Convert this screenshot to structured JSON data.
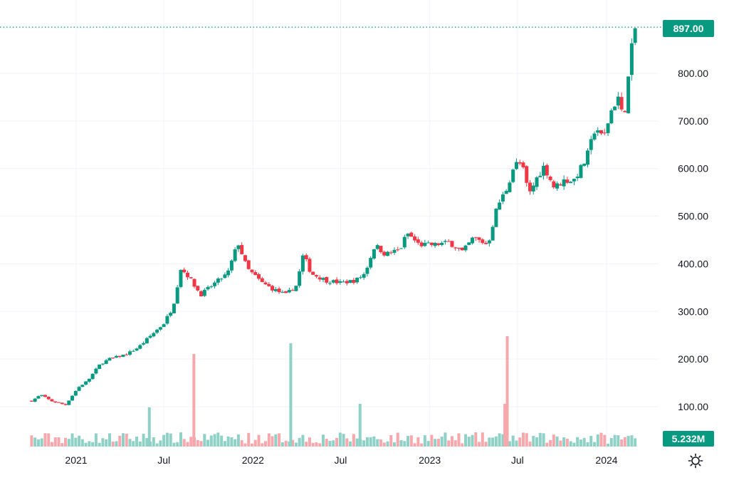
{
  "colors": {
    "up": "#089981",
    "down": "#f23645",
    "up_volume": "#8fd1c6",
    "down_volume": "#f7a8ad",
    "grid": "#f0f3fa",
    "text": "#131722"
  },
  "settings_icon": "gear-icon",
  "chart_data": {
    "type": "candlestick",
    "price_axis": {
      "ylim": [
        0,
        920
      ],
      "ticks": [
        "100.00",
        "200.00",
        "300.00",
        "400.00",
        "500.00",
        "600.00",
        "700.00",
        "800.00"
      ],
      "tick_values": [
        100,
        200,
        300,
        400,
        500,
        600,
        700,
        800
      ]
    },
    "time_axis": {
      "ticks": [
        "2021",
        "Jul",
        "2022",
        "Jul",
        "2023",
        "Jul",
        "2024"
      ],
      "tick_dates": [
        "2021-01",
        "2021-07",
        "2022-01",
        "2022-07",
        "2023-01",
        "2023-07",
        "2024-01"
      ],
      "first_bar": "2020-10",
      "last_bar": "2024-03"
    },
    "last_price": {
      "label": "897.00",
      "value": 897
    },
    "last_volume": {
      "label": "5.232M"
    },
    "close_anchors": [
      [
        "2020-10-01",
        112
      ],
      [
        "2020-10-20",
        125
      ],
      [
        "2020-11-10",
        112
      ],
      [
        "2020-12-10",
        104
      ],
      [
        "2021-01-05",
        140
      ],
      [
        "2021-01-25",
        155
      ],
      [
        "2021-02-20",
        190
      ],
      [
        "2021-03-10",
        200
      ],
      [
        "2021-04-15",
        210
      ],
      [
        "2021-05-10",
        225
      ],
      [
        "2021-06-10",
        255
      ],
      [
        "2021-07-01",
        275
      ],
      [
        "2021-07-20",
        310
      ],
      [
        "2021-08-05",
        390
      ],
      [
        "2021-08-20",
        375
      ],
      [
        "2021-09-15",
        335
      ],
      [
        "2021-10-15",
        360
      ],
      [
        "2021-11-10",
        380
      ],
      [
        "2021-12-01",
        445
      ],
      [
        "2021-12-20",
        390
      ],
      [
        "2022-01-20",
        360
      ],
      [
        "2022-02-15",
        345
      ],
      [
        "2022-03-10",
        335
      ],
      [
        "2022-04-01",
        355
      ],
      [
        "2022-04-15",
        420
      ],
      [
        "2022-05-01",
        380
      ],
      [
        "2022-06-01",
        365
      ],
      [
        "2022-07-01",
        360
      ],
      [
        "2022-08-01",
        365
      ],
      [
        "2022-08-20",
        380
      ],
      [
        "2022-09-10",
        440
      ],
      [
        "2022-10-01",
        420
      ],
      [
        "2022-11-01",
        430
      ],
      [
        "2022-11-15",
        465
      ],
      [
        "2022-12-10",
        440
      ],
      [
        "2023-01-10",
        440
      ],
      [
        "2023-02-10",
        445
      ],
      [
        "2023-03-10",
        425
      ],
      [
        "2023-04-01",
        455
      ],
      [
        "2023-05-01",
        440
      ],
      [
        "2023-05-20",
        520
      ],
      [
        "2023-06-10",
        560
      ],
      [
        "2023-06-25",
        610
      ],
      [
        "2023-07-10",
        610
      ],
      [
        "2023-07-25",
        545
      ],
      [
        "2023-08-10",
        580
      ],
      [
        "2023-08-25",
        605
      ],
      [
        "2023-09-15",
        560
      ],
      [
        "2023-10-05",
        575
      ],
      [
        "2023-10-25",
        575
      ],
      [
        "2023-11-20",
        620
      ],
      [
        "2023-12-10",
        690
      ],
      [
        "2023-12-25",
        660
      ],
      [
        "2024-01-10",
        720
      ],
      [
        "2024-01-25",
        750
      ],
      [
        "2024-02-05",
        700
      ],
      [
        "2024-02-15",
        790
      ],
      [
        "2024-02-25",
        880
      ],
      [
        "2024-03-01",
        897
      ]
    ],
    "volume_spikes": [
      [
        "2021-06-01",
        55,
        "up"
      ],
      [
        "2021-09-01",
        130,
        "down"
      ],
      [
        "2022-03-20",
        145,
        "up"
      ],
      [
        "2022-08-10",
        60,
        "up"
      ],
      [
        "2023-06-05",
        60,
        "down"
      ],
      [
        "2023-06-10",
        155,
        "down"
      ]
    ]
  }
}
